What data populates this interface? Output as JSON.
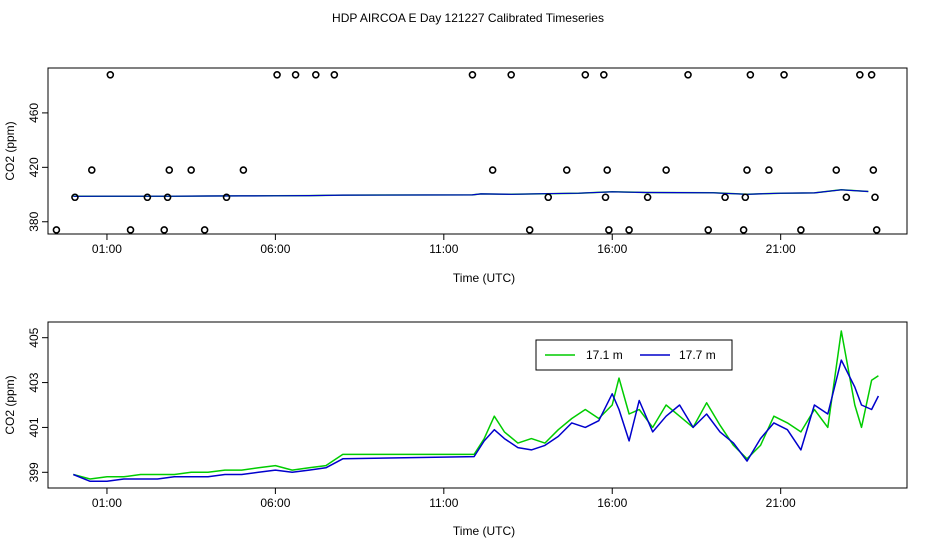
{
  "title": "HDP AIRCOA E  Day 121227  Calibrated Timeseries",
  "colors": {
    "green": "#00cc00",
    "blue": "#0000cc",
    "axis": "#000000"
  },
  "chart_data": [
    {
      "type": "line+scatter",
      "xlabel": "Time (UTC)",
      "ylabel": "CO2 (ppm)",
      "x_ticks": [
        {
          "hour": 1,
          "label": "01:00"
        },
        {
          "hour": 6,
          "label": "06:00"
        },
        {
          "hour": 11,
          "label": "11:00"
        },
        {
          "hour": 16,
          "label": "16:00"
        },
        {
          "hour": 21,
          "label": "21:00"
        }
      ],
      "y_ticks": [
        380,
        420,
        460
      ],
      "xlim_hours": [
        -0.75,
        24.75
      ],
      "ylim": [
        371,
        493
      ],
      "line": {
        "name": "17.7 m",
        "x_hours": [
          0,
          1,
          2,
          3,
          4,
          5,
          6,
          7,
          8,
          11.85,
          12.1,
          13,
          14,
          15,
          16,
          17,
          18,
          19,
          20,
          21,
          22,
          22.8,
          23.6
        ],
        "values": [
          398.7,
          398.8,
          398.8,
          398.8,
          398.9,
          399.0,
          399.1,
          399.2,
          399.6,
          399.7,
          400.5,
          400.2,
          400.6,
          401.0,
          402.0,
          401.5,
          401.4,
          401.3,
          400.2,
          401.0,
          401.2,
          403.5,
          402.2
        ]
      },
      "markers": {
        "symbol": "open-circle",
        "x_hours": [
          -0.5,
          0.05,
          0.55,
          1.1,
          1.7,
          2.2,
          2.7,
          2.8,
          2.85,
          3.5,
          3.9,
          4.55,
          5.05,
          6.05,
          6.6,
          7.2,
          7.75,
          11.85,
          12.45,
          13.0,
          13.55,
          14.1,
          14.65,
          15.2,
          15.75,
          15.8,
          15.85,
          15.9,
          16.5,
          17.05,
          17.6,
          18.25,
          18.85,
          19.35,
          19.9,
          19.95,
          20.0,
          20.1,
          20.65,
          21.1,
          21.6,
          22.65,
          22.95,
          23.35,
          23.7,
          23.75,
          23.8,
          23.85
        ],
        "values": [
          374,
          398,
          418,
          488,
          374,
          398,
          374,
          398,
          418,
          418,
          374,
          398,
          418,
          488,
          488,
          488,
          488,
          488,
          418,
          488,
          374,
          398,
          418,
          488,
          488,
          398,
          418,
          374,
          374,
          398,
          418,
          488,
          374,
          398,
          374,
          398,
          418,
          488,
          418,
          488,
          374,
          418,
          398,
          488,
          488,
          418,
          398,
          374
        ]
      }
    },
    {
      "type": "line",
      "xlabel": "Time (UTC)",
      "ylabel": "CO2 (ppm)",
      "x_ticks": [
        {
          "hour": 1,
          "label": "01:00"
        },
        {
          "hour": 6,
          "label": "06:00"
        },
        {
          "hour": 11,
          "label": "11:00"
        },
        {
          "hour": 16,
          "label": "16:00"
        },
        {
          "hour": 21,
          "label": "21:00"
        }
      ],
      "y_ticks": [
        399,
        401,
        403,
        405
      ],
      "xlim_hours": [
        -0.75,
        24.75
      ],
      "ylim": [
        398.3,
        405.7
      ],
      "legend": {
        "placement": "top-right"
      },
      "series": [
        {
          "name": "17.1 m",
          "color": "#00cc00",
          "x_hours": [
            0,
            0.5,
            1,
            1.5,
            2,
            2.5,
            3,
            3.5,
            4,
            4.5,
            5,
            5.5,
            6,
            6.5,
            7,
            7.5,
            8,
            11.9,
            12.2,
            12.5,
            12.8,
            13.2,
            13.6,
            14,
            14.4,
            14.8,
            15.2,
            15.6,
            16,
            16.2,
            16.5,
            16.8,
            17.2,
            17.6,
            18,
            18.4,
            18.8,
            19.2,
            19.6,
            20,
            20.4,
            20.8,
            21.2,
            21.6,
            22,
            22.4,
            22.8,
            23.2,
            23.4,
            23.7,
            23.9
          ],
          "values": [
            398.9,
            398.7,
            398.8,
            398.8,
            398.9,
            398.9,
            398.9,
            399.0,
            399.0,
            399.1,
            399.1,
            399.2,
            399.3,
            399.1,
            399.2,
            399.3,
            399.8,
            399.8,
            400.5,
            401.5,
            400.8,
            400.3,
            400.5,
            400.3,
            400.9,
            401.4,
            401.8,
            401.4,
            402.0,
            403.2,
            401.6,
            401.8,
            401.0,
            402.0,
            401.5,
            401.0,
            402.1,
            401.1,
            400.2,
            399.6,
            400.2,
            401.5,
            401.2,
            400.8,
            401.8,
            401.0,
            405.3,
            402.0,
            401.0,
            403.1,
            403.3
          ]
        },
        {
          "name": "17.7 m",
          "color": "#0000cc",
          "x_hours": [
            0,
            0.5,
            1,
            1.5,
            2,
            2.5,
            3,
            3.5,
            4,
            4.5,
            5,
            5.5,
            6,
            6.5,
            7,
            7.5,
            8,
            11.9,
            12.2,
            12.5,
            12.8,
            13.2,
            13.6,
            14,
            14.4,
            14.8,
            15.2,
            15.6,
            16,
            16.2,
            16.5,
            16.8,
            17.2,
            17.6,
            18,
            18.4,
            18.8,
            19.2,
            19.6,
            20,
            20.4,
            20.8,
            21.2,
            21.6,
            22,
            22.4,
            22.8,
            23.2,
            23.4,
            23.7,
            23.9
          ],
          "values": [
            398.9,
            398.6,
            398.6,
            398.7,
            398.7,
            398.7,
            398.8,
            398.8,
            398.8,
            398.9,
            398.9,
            399.0,
            399.1,
            399.0,
            399.1,
            399.2,
            399.6,
            399.7,
            400.4,
            400.9,
            400.5,
            400.1,
            400.0,
            400.2,
            400.6,
            401.2,
            401.0,
            401.3,
            402.5,
            401.8,
            400.4,
            402.2,
            400.8,
            401.5,
            402.0,
            401.0,
            401.6,
            400.8,
            400.3,
            399.5,
            400.5,
            401.2,
            400.9,
            400.0,
            402.0,
            401.6,
            404.0,
            402.8,
            402.0,
            401.8,
            402.4
          ]
        }
      ]
    }
  ]
}
